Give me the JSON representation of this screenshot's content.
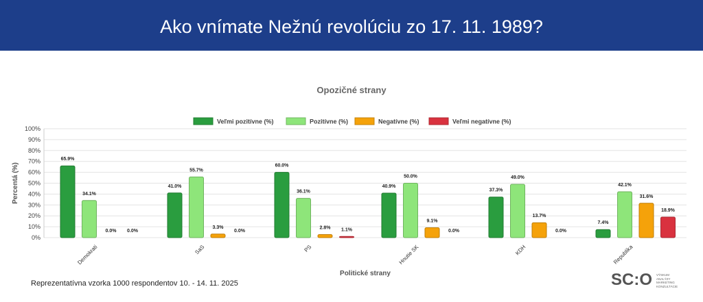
{
  "header": {
    "title": "Ako vnímate Nežnú revolúciu zo 17. 11. 1989?"
  },
  "footer": {
    "note": "Reprezentatívna vzorka 1000 respondentov 10. - 14. 11. 2025"
  },
  "logo": {
    "mark": "SC:O",
    "lines": [
      "VÝSKUM",
      "ANALÝZY",
      "MARKETING",
      "KONZULTÁCIE"
    ]
  },
  "colors": {
    "header_bg": "#1d3e8a"
  },
  "chart_data": {
    "type": "bar",
    "title": "Opozičné strany",
    "xlabel": "Politické strany",
    "ylabel": "Percentá (%)",
    "ylim": [
      0,
      100
    ],
    "yticks": [
      "0%",
      "10%",
      "20%",
      "30%",
      "40%",
      "50%",
      "60%",
      "70%",
      "80%",
      "90%",
      "100%"
    ],
    "grid": true,
    "legend_position": "top-center",
    "categories": [
      "Demokrati",
      "SaS",
      "PS",
      "Hnutie SK",
      "KDH",
      "Republika"
    ],
    "series": [
      {
        "name": "Veľmi pozitívne (%)",
        "color": "#2a9d3f",
        "values": [
          65.9,
          41.0,
          60.0,
          40.9,
          37.3,
          7.4
        ],
        "labels": [
          "65.9%",
          "41.0%",
          "60.0%",
          "40.9%",
          "37.3%",
          "7.4%"
        ]
      },
      {
        "name": "Pozitívne (%)",
        "color": "#8ee57a",
        "values": [
          34.1,
          55.7,
          36.1,
          50.0,
          49.0,
          42.1
        ],
        "labels": [
          "34.1%",
          "55.7%",
          "36.1%",
          "50.0%",
          "49.0%",
          "42.1%"
        ]
      },
      {
        "name": "Negatívne (%)",
        "color": "#f5a20a",
        "values": [
          0.0,
          3.3,
          2.8,
          9.1,
          13.7,
          31.6
        ],
        "labels": [
          "0.0%",
          "3.3%",
          "2.8%",
          "9.1%",
          "13.7%",
          "31.6%"
        ]
      },
      {
        "name": "Veľmi negatívne (%)",
        "color": "#d9323f",
        "values": [
          0.0,
          0.0,
          1.1,
          0.0,
          0.0,
          18.9
        ],
        "labels": [
          "0.0%",
          "0.0%",
          "1.1%",
          "0.0%",
          "0.0%",
          "18.9%"
        ]
      }
    ]
  }
}
